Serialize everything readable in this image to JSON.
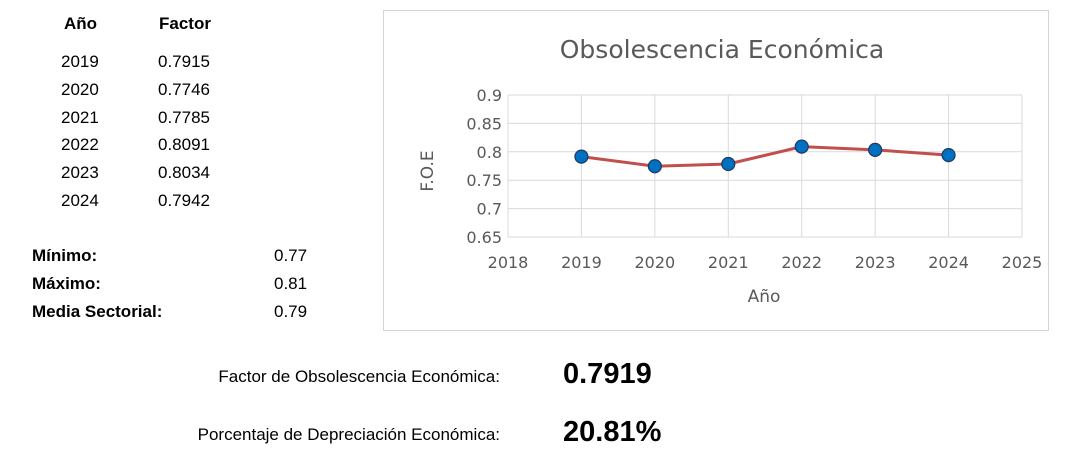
{
  "table": {
    "headers": {
      "year": "Año",
      "factor": "Factor"
    },
    "rows": [
      {
        "year": "2019",
        "factor": "0.7915"
      },
      {
        "year": "2020",
        "factor": "0.7746"
      },
      {
        "year": "2021",
        "factor": "0.7785"
      },
      {
        "year": "2022",
        "factor": "0.8091"
      },
      {
        "year": "2023",
        "factor": "0.8034"
      },
      {
        "year": "2024",
        "factor": "0.7942"
      }
    ]
  },
  "stats": {
    "min_label": "Mínimo:",
    "min_value": "0.77",
    "max_label": "Máximo:",
    "max_value": "0.81",
    "mean_label": "Media Sectorial:",
    "mean_value": "0.79"
  },
  "results": {
    "factor_label": "Factor de Obsolescencia Económica:",
    "factor_value": "0.7919",
    "depreciation_label": "Porcentaje de Depreciación Económica:",
    "depreciation_value": "20.81%"
  },
  "colors": {
    "line": "#c0504d",
    "marker_fill": "#0070c0",
    "marker_stroke": "#1f3864",
    "grid": "#d9d9d9",
    "axis_text": "#595959"
  },
  "chart_data": {
    "type": "line",
    "title": "Obsolescencia Económica",
    "xlabel": "Año",
    "ylabel": "F.O.E",
    "xlim": [
      2018,
      2025
    ],
    "ylim": [
      0.65,
      0.9
    ],
    "x_ticks": [
      "2018",
      "2019",
      "2020",
      "2021",
      "2022",
      "2023",
      "2024",
      "2025"
    ],
    "y_ticks": [
      "0.9",
      "0.85",
      "0.8",
      "0.75",
      "0.7",
      "0.65"
    ],
    "grid": true,
    "series": [
      {
        "x": [
          2019,
          2020,
          2021,
          2022,
          2023,
          2024
        ],
        "values": [
          0.7915,
          0.7746,
          0.7785,
          0.8091,
          0.8034,
          0.7942
        ]
      }
    ]
  }
}
